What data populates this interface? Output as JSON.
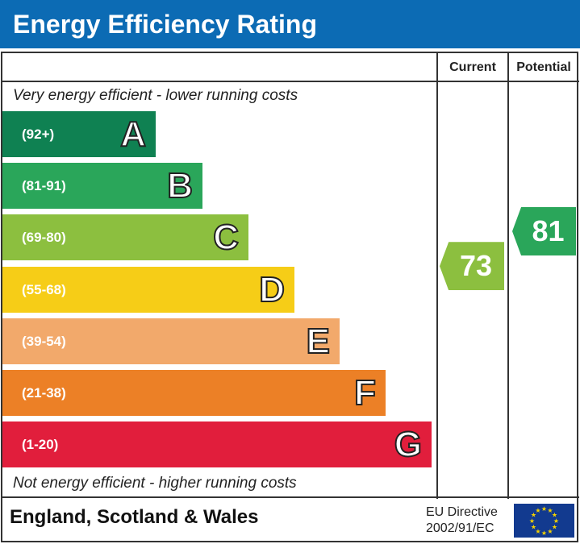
{
  "title": "Energy Efficiency Rating",
  "chart_data": {
    "type": "bar",
    "columns": [
      "Current",
      "Potential"
    ],
    "top_caption": "Very energy efficient - lower running costs",
    "bottom_caption": "Not energy efficient - higher running costs",
    "bands": [
      {
        "letter": "A",
        "range": "(92+)",
        "color": "#0f8152"
      },
      {
        "letter": "B",
        "range": "(81-91)",
        "color": "#2aa65a"
      },
      {
        "letter": "C",
        "range": "(69-80)",
        "color": "#8cbf3f"
      },
      {
        "letter": "D",
        "range": "(55-68)",
        "color": "#f6cd17"
      },
      {
        "letter": "E",
        "range": "(39-54)",
        "color": "#f2a96b"
      },
      {
        "letter": "F",
        "range": "(21-38)",
        "color": "#ec8026"
      },
      {
        "letter": "G",
        "range": "(1-20)",
        "color": "#e11e3c"
      }
    ],
    "current": {
      "value": "73",
      "band": "C",
      "color": "#8cbf3f"
    },
    "potential": {
      "value": "81",
      "band": "B",
      "color": "#2aa65a"
    }
  },
  "footer": {
    "region": "England, Scotland & Wales",
    "directive_line1": "EU Directive",
    "directive_line2": "2002/91/EC"
  }
}
